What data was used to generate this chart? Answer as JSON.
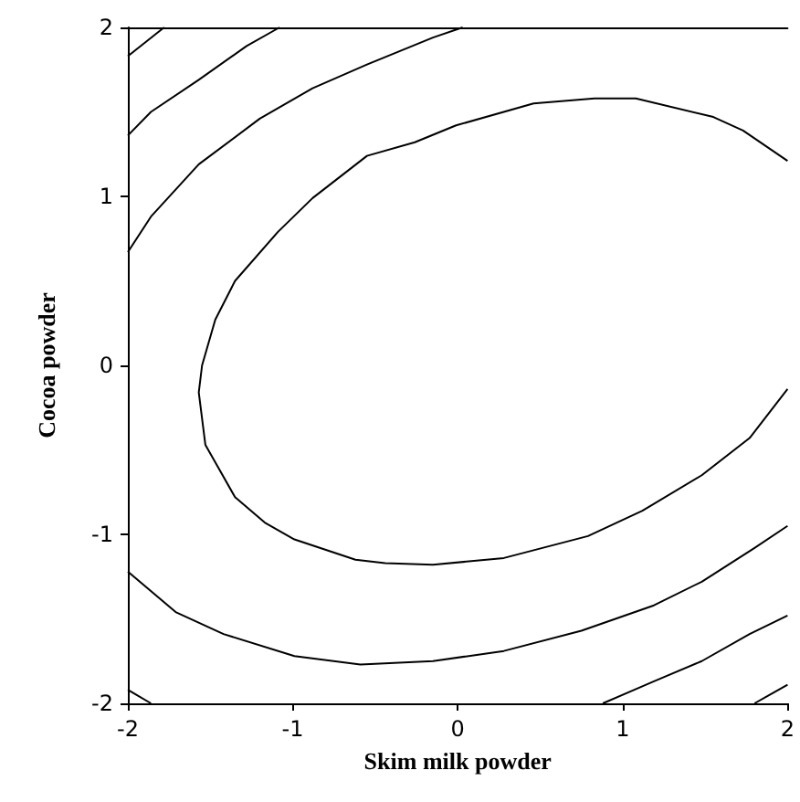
{
  "chart_data": {
    "type": "line",
    "xlabel": "Skim milk powder",
    "ylabel": "Cocoa powder",
    "xlim": [
      -2,
      2
    ],
    "ylim": [
      -2,
      2
    ],
    "xticks": [
      -2,
      -1,
      0,
      1,
      2
    ],
    "yticks": [
      -2,
      -1,
      0,
      1,
      2
    ],
    "marker": "none",
    "line_style": "solid",
    "series": [
      {
        "color": "#000000",
        "x": [
          -2,
          -1.78
        ],
        "values": [
          1.83,
          2
        ]
      },
      {
        "color": "#000000",
        "x": [
          -2,
          -1.86,
          -1.57,
          -1.28,
          -1.08
        ],
        "values": [
          1.36,
          1.5,
          1.69,
          1.89,
          2
        ]
      },
      {
        "color": "#000000",
        "x": [
          -2,
          -1.86,
          -1.57,
          -1.2,
          -0.88,
          -0.55,
          -0.15,
          0.03
        ],
        "values": [
          0.67,
          0.88,
          1.19,
          1.46,
          1.64,
          1.78,
          1.94,
          2
        ]
      },
      {
        "color": "#000000",
        "x": [
          2,
          1.73,
          1.55,
          1.08,
          0.83,
          0.46,
          -0.01,
          -0.26,
          -0.55,
          -0.88,
          -1.09,
          -1.35,
          -1.47,
          -1.55,
          -1.57,
          -1.53,
          -1.35,
          -1.17,
          -0.99,
          -0.62,
          -0.44,
          -0.15,
          0.28,
          0.79,
          1.12,
          1.48,
          1.77,
          2
        ],
        "values": [
          1.21,
          1.39,
          1.47,
          1.58,
          1.58,
          1.55,
          1.42,
          1.32,
          1.24,
          0.99,
          0.79,
          0.5,
          0.27,
          0,
          -0.16,
          -0.47,
          -0.78,
          -0.93,
          -1.03,
          -1.15,
          -1.17,
          -1.18,
          -1.14,
          -1.01,
          -0.86,
          -0.65,
          -0.43,
          -0.14
        ]
      },
      {
        "color": "#000000",
        "x": [
          -2,
          -1.71,
          -1.42,
          -0.99,
          -0.59,
          -0.15,
          0.28,
          0.75,
          1.19,
          1.48,
          1.8,
          2
        ],
        "values": [
          -1.22,
          -1.46,
          -1.59,
          -1.72,
          -1.77,
          -1.75,
          -1.69,
          -1.57,
          -1.42,
          -1.28,
          -1.08,
          -0.95
        ]
      },
      {
        "color": "#000000",
        "x": [
          0.88,
          1.19,
          1.48,
          1.77,
          2
        ],
        "values": [
          -2,
          -1.87,
          -1.75,
          -1.59,
          -1.48
        ]
      },
      {
        "color": "#000000",
        "x": [
          1.8,
          2
        ],
        "values": [
          -2,
          -1.89
        ]
      },
      {
        "color": "#000000",
        "x": [
          -2,
          -1.86
        ],
        "values": [
          -1.92,
          -2
        ]
      }
    ]
  }
}
